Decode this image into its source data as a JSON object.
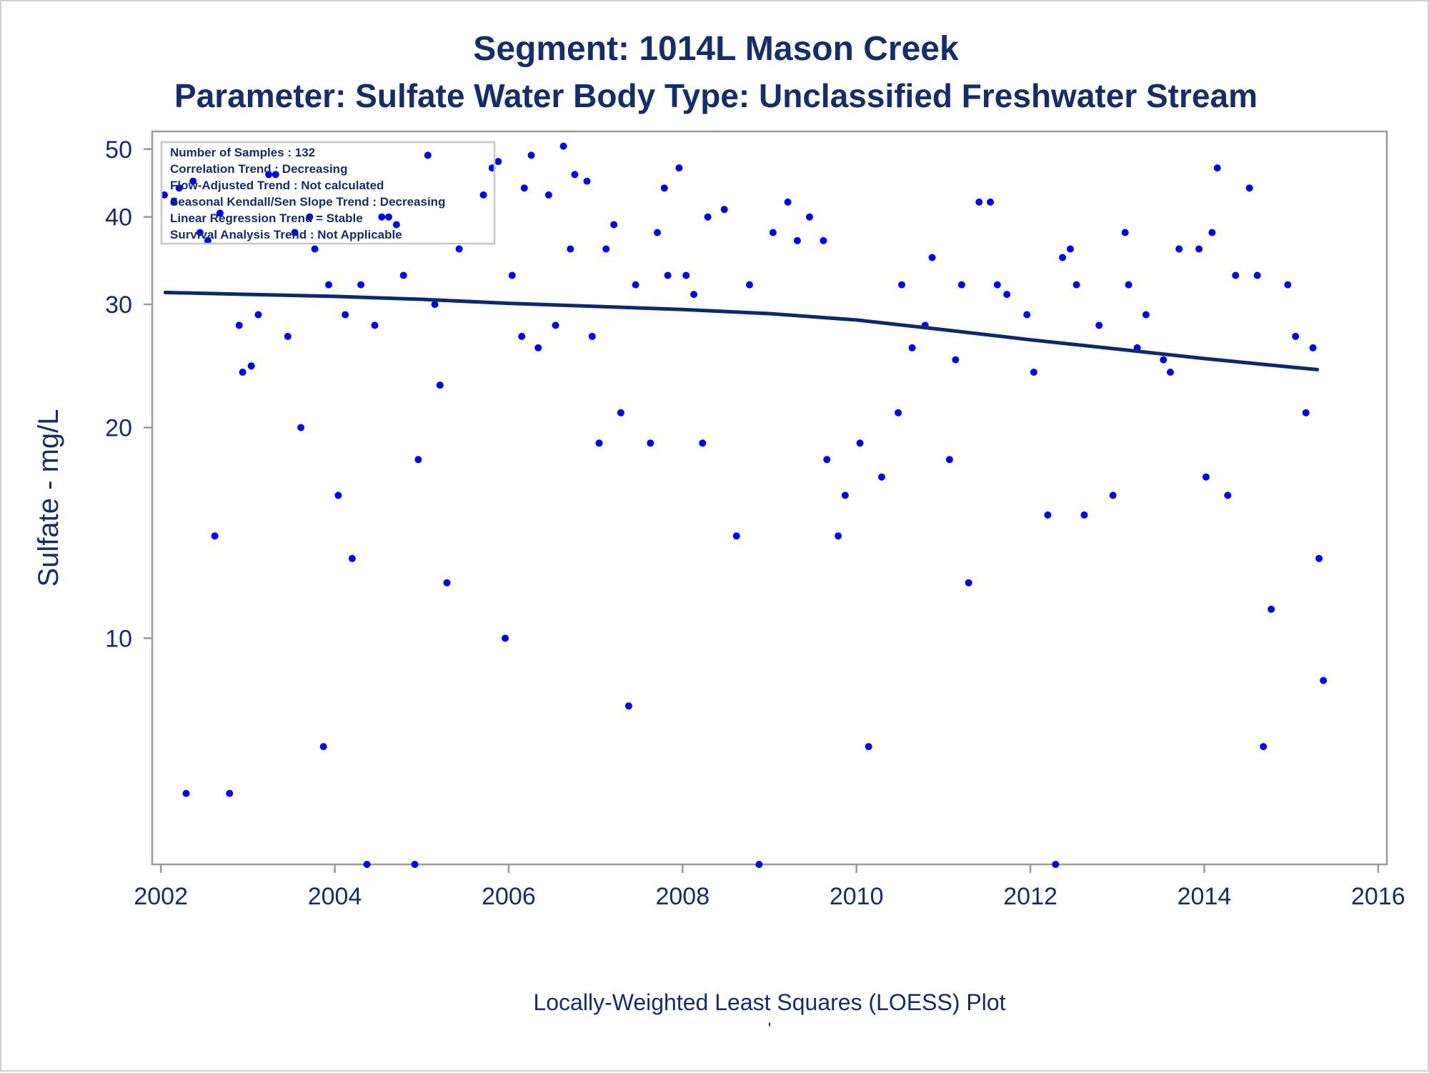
{
  "chart_data": {
    "type": "scatter",
    "title": "Segment: 1014L  Mason Creek",
    "subtitle": "Parameter: Sulfate   Water Body Type: Unclassified Freshwater Stream",
    "ylabel": "Sulfate - mg/L",
    "xlabel": "",
    "footnote": "Locally-Weighted Least Squares (LOESS) Plot",
    "footnote_mark": "'",
    "y_scale": "log",
    "xlim": [
      2001.9,
      2016.1
    ],
    "ylim": [
      4.75,
      53
    ],
    "x_ticks": [
      2002,
      2004,
      2006,
      2008,
      2010,
      2012,
      2014,
      2016
    ],
    "x_tick_labels": [
      "2002",
      "2004",
      "2006",
      "2008",
      "2010",
      "2012",
      "2014",
      "2016"
    ],
    "y_ticks": [
      10,
      20,
      30,
      40,
      50
    ],
    "y_tick_labels": [
      "10",
      "20",
      "30",
      "40",
      "50"
    ],
    "grid": false,
    "inset_box": {
      "position": "top-left",
      "lines": [
        "Number of Samples : 132",
        "Correlation Trend : Decreasing",
        "Flow-Adjusted Trend : Not calculated",
        "Seasonal Kendall/Sen Slope Trend : Decreasing",
        "Linear Regression Trend = Stable",
        "Survival Analysis Trend : Not Applicable"
      ]
    },
    "colors": {
      "points": "#0000ff",
      "loess_line": "#0b2a6e",
      "text": "#142d6b",
      "axis": "#9a9a9a"
    },
    "series": [
      {
        "kind": "points",
        "x": [
          2002.04,
          2002.15,
          2002.21,
          2002.29,
          2002.37,
          2002.45,
          2002.54,
          2002.62,
          2002.68,
          2002.79,
          2002.9,
          2002.94,
          2003.04,
          2003.12,
          2003.24,
          2003.32,
          2003.46,
          2003.54,
          2003.61,
          2003.71,
          2003.77,
          2003.87,
          2003.93,
          2004.04,
          2004.12,
          2004.2,
          2004.3,
          2004.37,
          2004.46,
          2004.54,
          2004.62,
          2004.71,
          2004.79,
          2004.92,
          2004.96,
          2005.07,
          2005.15,
          2005.21,
          2005.29,
          2005.43,
          2005.71,
          2005.81,
          2005.88,
          2005.96,
          2006.04,
          2006.15,
          2006.18,
          2006.26,
          2006.34,
          2006.46,
          2006.54,
          2006.63,
          2006.71,
          2006.76,
          2006.9,
          2006.96,
          2007.04,
          2007.12,
          2007.21,
          2007.29,
          2007.38,
          2007.46,
          2007.63,
          2007.71,
          2007.79,
          2007.83,
          2007.96,
          2008.04,
          2008.13,
          2008.23,
          2008.29,
          2008.48,
          2008.62,
          2008.77,
          2008.88,
          2009.04,
          2009.21,
          2009.32,
          2009.46,
          2009.62,
          2009.66,
          2009.79,
          2009.87,
          2010.04,
          2010.14,
          2010.29,
          2010.48,
          2010.52,
          2010.64,
          2010.79,
          2010.87,
          2011.07,
          2011.14,
          2011.21,
          2011.29,
          2011.41,
          2011.54,
          2011.62,
          2011.73,
          2011.96,
          2012.04,
          2012.2,
          2012.29,
          2012.37,
          2012.46,
          2012.53,
          2012.62,
          2012.79,
          2012.95,
          2013.09,
          2013.13,
          2013.23,
          2013.33,
          2013.53,
          2013.61,
          2013.71,
          2013.94,
          2014.02,
          2014.09,
          2014.15,
          2014.27,
          2014.36,
          2014.52,
          2014.61,
          2014.68,
          2014.77,
          2014.96,
          2015.05,
          2015.17,
          2015.25,
          2015.32,
          2015.37
        ],
        "y": [
          43,
          42,
          44,
          6,
          45,
          38,
          37,
          14,
          40.5,
          6,
          28,
          24,
          24.5,
          29,
          46,
          46,
          27,
          38,
          20,
          40,
          36,
          7,
          32,
          16,
          29,
          13,
          32,
          4.75,
          28,
          40,
          40,
          39,
          33,
          4.75,
          18,
          49,
          30,
          23,
          12,
          36,
          43,
          47,
          48,
          10,
          33,
          27,
          44,
          49,
          26,
          43,
          28,
          50.5,
          36,
          46,
          45,
          27,
          19,
          36,
          39,
          21,
          8,
          32,
          19,
          38,
          44,
          33,
          47,
          33,
          31,
          19,
          40,
          41,
          14,
          32,
          4.75,
          38,
          42,
          37,
          40,
          37,
          18,
          14,
          16,
          19,
          7,
          17,
          21,
          32,
          26,
          28,
          35,
          18,
          25,
          32,
          12,
          42,
          42,
          32,
          31,
          29,
          24,
          15,
          4.75,
          35,
          36,
          32,
          15,
          28,
          16,
          38,
          32,
          26,
          29,
          25,
          24,
          36,
          36,
          17,
          38,
          47,
          16,
          33,
          44,
          33,
          7,
          11,
          32,
          27,
          21,
          26,
          13,
          8.7
        ]
      },
      {
        "kind": "loess_line",
        "x": [
          2002.05,
          2003,
          2004,
          2005,
          2006,
          2007,
          2008,
          2009,
          2010,
          2011,
          2012,
          2013,
          2014,
          2015,
          2015.3
        ],
        "y": [
          31.2,
          31.0,
          30.8,
          30.5,
          30.1,
          29.8,
          29.5,
          29.1,
          28.5,
          27.6,
          26.7,
          25.9,
          25.1,
          24.4,
          24.2
        ]
      }
    ]
  }
}
